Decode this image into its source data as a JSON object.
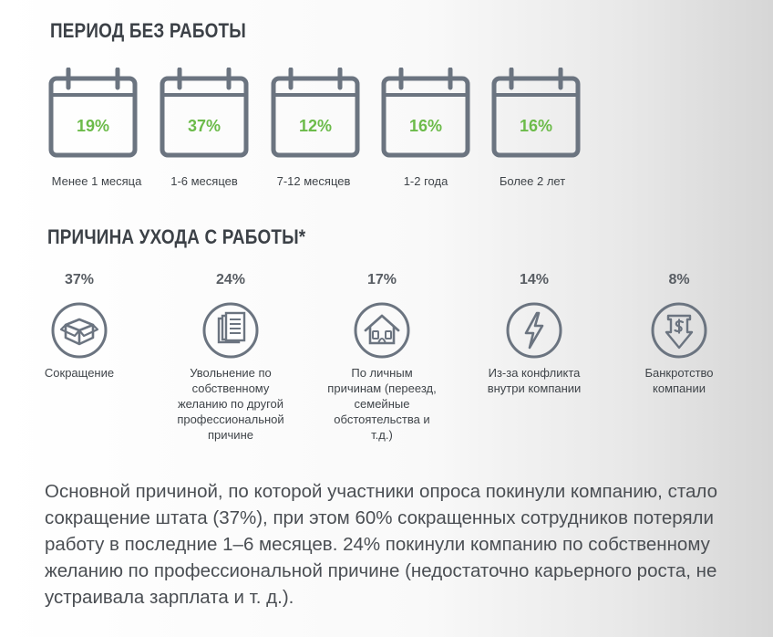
{
  "period": {
    "title": "ПЕРИОД БЕЗ РАБОТЫ",
    "items": [
      {
        "percent": "19%",
        "label": "Менее 1 месяца"
      },
      {
        "percent": "37%",
        "label": "1-6 месяцев"
      },
      {
        "percent": "12%",
        "label": "7-12 месяцев"
      },
      {
        "percent": "16%",
        "label": "1-2 года"
      },
      {
        "percent": "16%",
        "label": "Более 2 лет"
      }
    ]
  },
  "reasons": {
    "title": "ПРИЧИНА УХОДА С РАБОТЫ*",
    "items": [
      {
        "percent": "37%",
        "label": "Сокращение",
        "icon": "box-icon"
      },
      {
        "percent": "24%",
        "label": "Увольнение по собственному желанию по другой профессиональной причине",
        "icon": "documents-icon"
      },
      {
        "percent": "17%",
        "label": "По личным причинам (переезд, семейные обстоятельства и т.д.)",
        "icon": "house-icon"
      },
      {
        "percent": "14%",
        "label": "Из-за конфликта внутри компании",
        "icon": "lightning-icon"
      },
      {
        "percent": "8%",
        "label": "Банкротство компании",
        "icon": "dollar-shield-icon"
      }
    ]
  },
  "summary": "Основной причиной, по которой участники опроса покинули компанию, стало сокращение штата (37%), при этом 60% сокращенных сотрудников потеряли работу в последние 1–6 месяцев. 24% покинули компанию по собственному желанию по профессиональной причине (недостаточно карьерного роста, не устраивала зарплата и т. д.).",
  "colors": {
    "heading": "#3c4147",
    "icon_stroke": "#6b7480",
    "percent_green": "#6cbb4a",
    "text": "#3f4449"
  }
}
